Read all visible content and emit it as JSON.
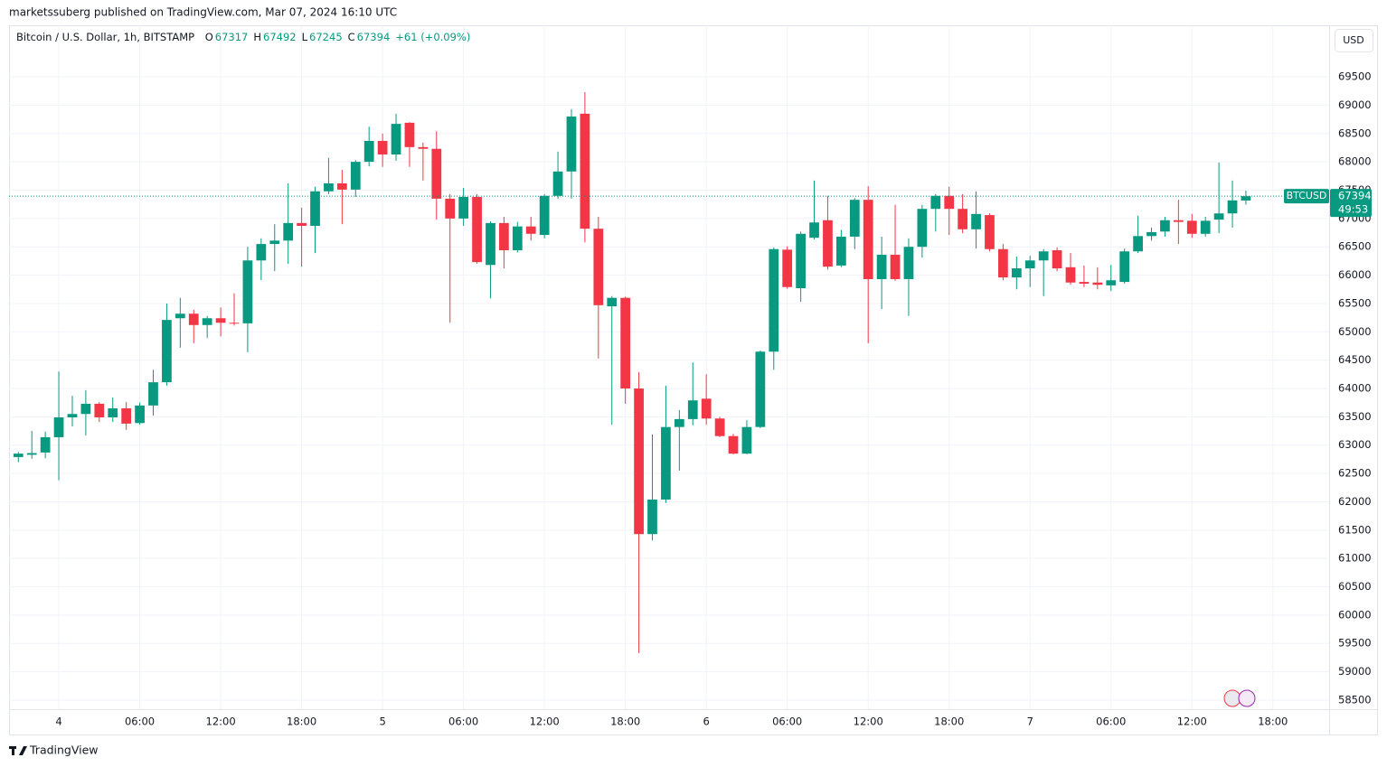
{
  "header": "marketssuberg published on TradingView.com, Mar 07, 2024 16:10 UTC",
  "brand": "TradingView",
  "currency": "USD",
  "chart_data": {
    "type": "candlestick",
    "legend": {
      "symbol": "Bitcoin / U.S. Dollar, 1h, BITSTAMP",
      "ohlc": [
        {
          "label": "O",
          "value": 67317
        },
        {
          "label": "H",
          "value": 67492
        },
        {
          "label": "L",
          "value": 67245
        },
        {
          "label": "C",
          "value": 67394
        }
      ],
      "change": "+61 (+0.09%)"
    },
    "last_price": {
      "symbol": "BTCUSD",
      "value": 67394,
      "countdown": "49:53"
    },
    "up_color": "#089981",
    "down_color": "#f23645",
    "grid": true,
    "ylim": [
      58340,
      70410
    ],
    "yticks": [
      58500,
      59000,
      59500,
      60000,
      60500,
      61000,
      61500,
      62000,
      62500,
      63000,
      63500,
      64000,
      64500,
      65000,
      65500,
      66000,
      66500,
      67000,
      67500,
      68000,
      68500,
      69000,
      69500
    ],
    "xlim": [
      -0.69,
      97.17
    ],
    "xticks": [
      {
        "value": 3,
        "label": "4"
      },
      {
        "value": 9,
        "label": "06:00"
      },
      {
        "value": 15,
        "label": "12:00"
      },
      {
        "value": 21,
        "label": "18:00"
      },
      {
        "value": 27,
        "label": "5"
      },
      {
        "value": 33,
        "label": "06:00"
      },
      {
        "value": 39,
        "label": "12:00"
      },
      {
        "value": 45,
        "label": "18:00"
      },
      {
        "value": 51,
        "label": "6"
      },
      {
        "value": 57,
        "label": "06:00"
      },
      {
        "value": 63,
        "label": "12:00"
      },
      {
        "value": 69,
        "label": "18:00"
      },
      {
        "value": 75,
        "label": "7"
      },
      {
        "value": 81,
        "label": "06:00"
      },
      {
        "value": 87,
        "label": "12:00"
      },
      {
        "value": 93,
        "label": "18:00"
      }
    ],
    "candles": [
      {
        "o": 62790,
        "h": 62880,
        "l": 62700,
        "c": 62850
      },
      {
        "o": 62830,
        "h": 63250,
        "l": 62760,
        "c": 62860
      },
      {
        "o": 62870,
        "h": 63240,
        "l": 62770,
        "c": 63140
      },
      {
        "o": 63140,
        "h": 64300,
        "l": 62380,
        "c": 63490
      },
      {
        "o": 63490,
        "h": 63870,
        "l": 63330,
        "c": 63550
      },
      {
        "o": 63550,
        "h": 63970,
        "l": 63170,
        "c": 63730
      },
      {
        "o": 63730,
        "h": 63760,
        "l": 63410,
        "c": 63490
      },
      {
        "o": 63490,
        "h": 63840,
        "l": 63410,
        "c": 63650
      },
      {
        "o": 63650,
        "h": 63760,
        "l": 63270,
        "c": 63380
      },
      {
        "o": 63390,
        "h": 63750,
        "l": 63360,
        "c": 63700
      },
      {
        "o": 63700,
        "h": 64330,
        "l": 63520,
        "c": 64110
      },
      {
        "o": 64110,
        "h": 65500,
        "l": 64050,
        "c": 65210
      },
      {
        "o": 65240,
        "h": 65600,
        "l": 64720,
        "c": 65320
      },
      {
        "o": 65320,
        "h": 65390,
        "l": 64800,
        "c": 65120
      },
      {
        "o": 65120,
        "h": 65280,
        "l": 64890,
        "c": 65240
      },
      {
        "o": 65240,
        "h": 65430,
        "l": 64920,
        "c": 65160
      },
      {
        "o": 65160,
        "h": 65680,
        "l": 65110,
        "c": 65150
      },
      {
        "o": 65150,
        "h": 66500,
        "l": 64640,
        "c": 66260
      },
      {
        "o": 66260,
        "h": 66650,
        "l": 65910,
        "c": 66550
      },
      {
        "o": 66550,
        "h": 66900,
        "l": 66070,
        "c": 66610
      },
      {
        "o": 66610,
        "h": 67620,
        "l": 66200,
        "c": 66920
      },
      {
        "o": 66920,
        "h": 67190,
        "l": 66150,
        "c": 66870
      },
      {
        "o": 66870,
        "h": 67560,
        "l": 66390,
        "c": 67480
      },
      {
        "o": 67480,
        "h": 68070,
        "l": 67430,
        "c": 67620
      },
      {
        "o": 67620,
        "h": 67860,
        "l": 66900,
        "c": 67510
      },
      {
        "o": 67510,
        "h": 68030,
        "l": 67380,
        "c": 68000
      },
      {
        "o": 68000,
        "h": 68620,
        "l": 67920,
        "c": 68370
      },
      {
        "o": 68370,
        "h": 68500,
        "l": 67910,
        "c": 68130
      },
      {
        "o": 68130,
        "h": 68850,
        "l": 68020,
        "c": 68670
      },
      {
        "o": 68690,
        "h": 68700,
        "l": 67910,
        "c": 68260
      },
      {
        "o": 68260,
        "h": 68340,
        "l": 67670,
        "c": 68230
      },
      {
        "o": 68230,
        "h": 68540,
        "l": 66980,
        "c": 67350
      },
      {
        "o": 67350,
        "h": 67430,
        "l": 65160,
        "c": 67000
      },
      {
        "o": 67000,
        "h": 67540,
        "l": 66870,
        "c": 67380
      },
      {
        "o": 67380,
        "h": 67430,
        "l": 66200,
        "c": 66230
      },
      {
        "o": 66180,
        "h": 66950,
        "l": 65590,
        "c": 66920
      },
      {
        "o": 66920,
        "h": 67030,
        "l": 66120,
        "c": 66440
      },
      {
        "o": 66440,
        "h": 66940,
        "l": 66400,
        "c": 66860
      },
      {
        "o": 66860,
        "h": 67030,
        "l": 66610,
        "c": 66730
      },
      {
        "o": 66710,
        "h": 67430,
        "l": 66650,
        "c": 67400
      },
      {
        "o": 67400,
        "h": 68180,
        "l": 67350,
        "c": 67830
      },
      {
        "o": 67830,
        "h": 68930,
        "l": 67350,
        "c": 68800
      },
      {
        "o": 68850,
        "h": 69230,
        "l": 66580,
        "c": 66820
      },
      {
        "o": 66820,
        "h": 67030,
        "l": 64530,
        "c": 65470
      },
      {
        "o": 65450,
        "h": 65630,
        "l": 63360,
        "c": 65600
      },
      {
        "o": 65600,
        "h": 65620,
        "l": 63730,
        "c": 64000
      },
      {
        "o": 64000,
        "h": 64290,
        "l": 59330,
        "c": 61430
      },
      {
        "o": 61430,
        "h": 63190,
        "l": 61320,
        "c": 62040
      },
      {
        "o": 62040,
        "h": 64050,
        "l": 61980,
        "c": 63320
      },
      {
        "o": 63320,
        "h": 63620,
        "l": 62550,
        "c": 63460
      },
      {
        "o": 63460,
        "h": 64460,
        "l": 63350,
        "c": 63790
      },
      {
        "o": 63820,
        "h": 64250,
        "l": 63360,
        "c": 63470
      },
      {
        "o": 63470,
        "h": 63500,
        "l": 63140,
        "c": 63160
      },
      {
        "o": 63160,
        "h": 63200,
        "l": 62840,
        "c": 62850
      },
      {
        "o": 62850,
        "h": 63440,
        "l": 62840,
        "c": 63320
      },
      {
        "o": 63320,
        "h": 64670,
        "l": 63300,
        "c": 64650
      },
      {
        "o": 64650,
        "h": 66490,
        "l": 64330,
        "c": 66460
      },
      {
        "o": 66450,
        "h": 66510,
        "l": 65760,
        "c": 65790
      },
      {
        "o": 65770,
        "h": 66770,
        "l": 65530,
        "c": 66730
      },
      {
        "o": 66660,
        "h": 67670,
        "l": 66630,
        "c": 66930
      },
      {
        "o": 66970,
        "h": 67400,
        "l": 66100,
        "c": 66150
      },
      {
        "o": 66170,
        "h": 66800,
        "l": 66140,
        "c": 66680
      },
      {
        "o": 66680,
        "h": 67360,
        "l": 66460,
        "c": 67330
      },
      {
        "o": 67330,
        "h": 67570,
        "l": 64800,
        "c": 65930
      },
      {
        "o": 65930,
        "h": 66680,
        "l": 65400,
        "c": 66360
      },
      {
        "o": 66360,
        "h": 67240,
        "l": 65900,
        "c": 65930
      },
      {
        "o": 65930,
        "h": 66650,
        "l": 65280,
        "c": 66500
      },
      {
        "o": 66500,
        "h": 67240,
        "l": 66310,
        "c": 67170
      },
      {
        "o": 67170,
        "h": 67430,
        "l": 66770,
        "c": 67400
      },
      {
        "o": 67400,
        "h": 67560,
        "l": 66710,
        "c": 67170
      },
      {
        "o": 67170,
        "h": 67430,
        "l": 66740,
        "c": 66810
      },
      {
        "o": 66810,
        "h": 67480,
        "l": 66470,
        "c": 67080
      },
      {
        "o": 67060,
        "h": 67090,
        "l": 66420,
        "c": 66460
      },
      {
        "o": 66460,
        "h": 66550,
        "l": 65910,
        "c": 65960
      },
      {
        "o": 65960,
        "h": 66330,
        "l": 65750,
        "c": 66120
      },
      {
        "o": 66120,
        "h": 66340,
        "l": 65790,
        "c": 66260
      },
      {
        "o": 66260,
        "h": 66460,
        "l": 65630,
        "c": 66420
      },
      {
        "o": 66440,
        "h": 66490,
        "l": 66070,
        "c": 66120
      },
      {
        "o": 66140,
        "h": 66390,
        "l": 65830,
        "c": 65870
      },
      {
        "o": 65880,
        "h": 66170,
        "l": 65790,
        "c": 65850
      },
      {
        "o": 65870,
        "h": 66140,
        "l": 65750,
        "c": 65830
      },
      {
        "o": 65820,
        "h": 66180,
        "l": 65720,
        "c": 65910
      },
      {
        "o": 65880,
        "h": 66470,
        "l": 65850,
        "c": 66420
      },
      {
        "o": 66420,
        "h": 67050,
        "l": 66390,
        "c": 66690
      },
      {
        "o": 66690,
        "h": 66840,
        "l": 66610,
        "c": 66760
      },
      {
        "o": 66770,
        "h": 67030,
        "l": 66680,
        "c": 66970
      },
      {
        "o": 66970,
        "h": 67330,
        "l": 66550,
        "c": 66940
      },
      {
        "o": 66960,
        "h": 67080,
        "l": 66660,
        "c": 66730
      },
      {
        "o": 66730,
        "h": 67030,
        "l": 66680,
        "c": 66960
      },
      {
        "o": 66980,
        "h": 67990,
        "l": 66740,
        "c": 67090
      },
      {
        "o": 67090,
        "h": 67670,
        "l": 66840,
        "c": 67320
      },
      {
        "o": 67317,
        "h": 67492,
        "l": 67245,
        "c": 67394
      }
    ]
  }
}
